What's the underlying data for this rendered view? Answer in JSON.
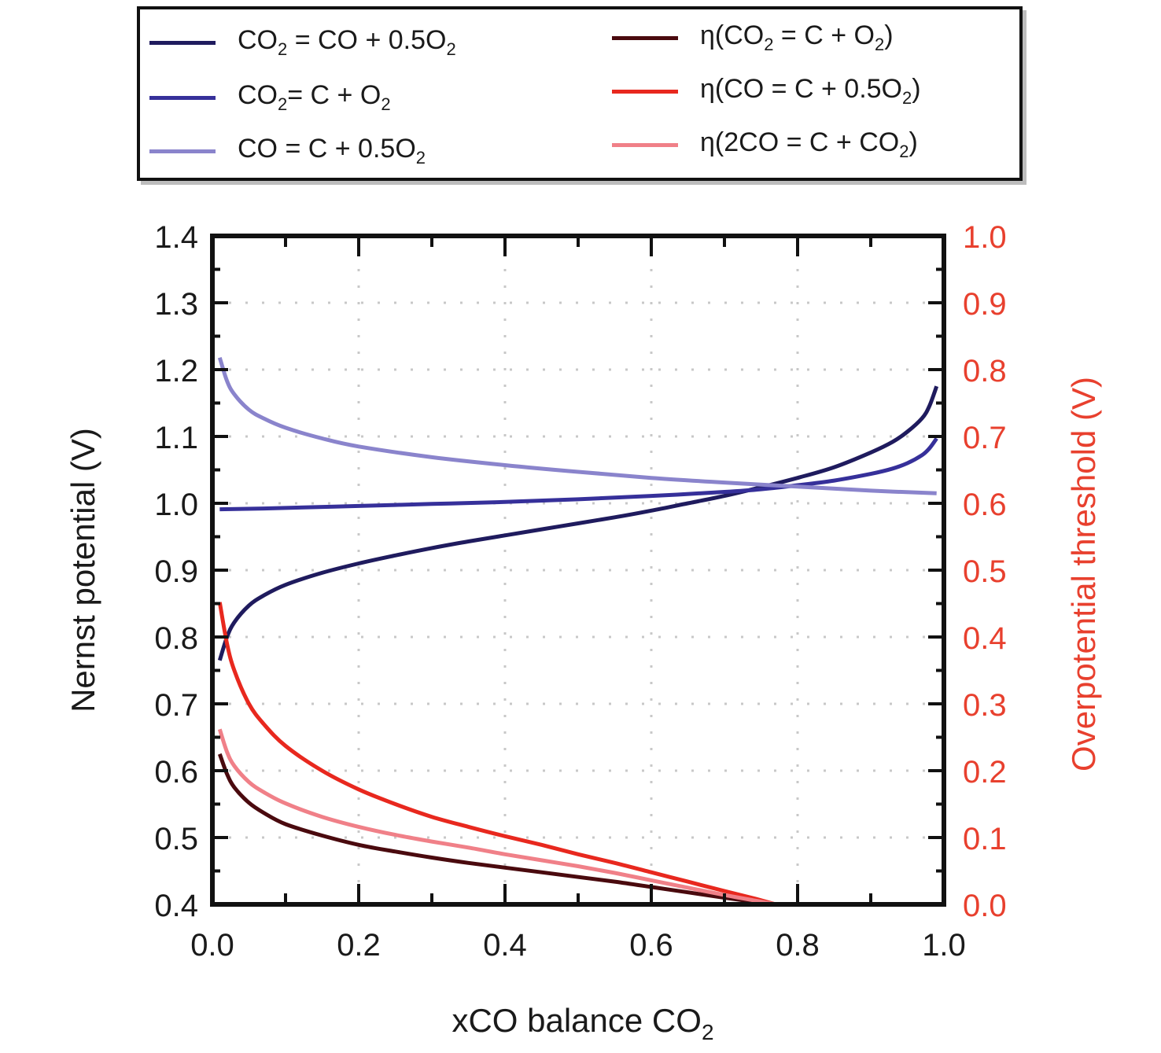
{
  "chart_data": {
    "type": "line",
    "title": "",
    "xlabel": "xCO balance CO",
    "xlabel_subscript": "2",
    "ylabel": "Nernst potential (V)",
    "ylabel_right": "Overpotential threshold (V)",
    "xlim": [
      0.0,
      1.0
    ],
    "ylim": [
      0.4,
      1.4
    ],
    "ylim_right": [
      0.0,
      1.0
    ],
    "grid": true,
    "legend_position": "top-outside",
    "x_ticks": [
      "0.0",
      "0.2",
      "0.4",
      "0.6",
      "0.8",
      "1.0"
    ],
    "y_ticks": [
      "0.4",
      "0.5",
      "0.6",
      "0.7",
      "0.8",
      "0.9",
      "1.0",
      "1.1",
      "1.2",
      "1.3",
      "1.4"
    ],
    "y_ticks_right": [
      "0.0",
      "0.1",
      "0.2",
      "0.3",
      "0.4",
      "0.5",
      "0.6",
      "0.7",
      "0.8",
      "0.9",
      "1.0"
    ],
    "colors": {
      "axis_right": "#e8402e",
      "grid": "#c8c8c8"
    },
    "series": [
      {
        "name": "CO2 = CO + 0.5O2",
        "legend": {
          "pre": "CO",
          "sub1": "2",
          "mid": " = CO + 0.5O",
          "sub2": "2",
          "post": ""
        },
        "axis": "left",
        "color": "#1f1b5e",
        "x": [
          0.01,
          0.02,
          0.03,
          0.05,
          0.07,
          0.1,
          0.15,
          0.2,
          0.25,
          0.3,
          0.35,
          0.4,
          0.45,
          0.5,
          0.55,
          0.6,
          0.65,
          0.7,
          0.75,
          0.8,
          0.85,
          0.9,
          0.93,
          0.95,
          0.97,
          0.98,
          0.99
        ],
        "y": [
          0.765,
          0.8,
          0.822,
          0.847,
          0.862,
          0.878,
          0.896,
          0.91,
          0.922,
          0.933,
          0.943,
          0.952,
          0.961,
          0.97,
          0.979,
          0.989,
          1.0,
          1.011,
          1.024,
          1.038,
          1.054,
          1.076,
          1.092,
          1.107,
          1.127,
          1.145,
          1.175
        ]
      },
      {
        "name": "CO2= C + O2",
        "legend": {
          "pre": "CO",
          "sub1": "2",
          "mid": "= C + O",
          "sub2": "2",
          "post": ""
        },
        "axis": "left",
        "color": "#36309a",
        "x": [
          0.01,
          0.1,
          0.2,
          0.3,
          0.4,
          0.5,
          0.6,
          0.7,
          0.75,
          0.8,
          0.85,
          0.9,
          0.93,
          0.95,
          0.97,
          0.98,
          0.99
        ],
        "y": [
          0.991,
          0.993,
          0.996,
          0.999,
          1.002,
          1.006,
          1.011,
          1.017,
          1.021,
          1.027,
          1.034,
          1.044,
          1.052,
          1.06,
          1.072,
          1.082,
          1.097
        ]
      },
      {
        "name": "CO = C + 0.5O2",
        "legend": {
          "pre": "CO = C + 0.5O",
          "sub1": "2",
          "mid": "",
          "sub2": "",
          "post": ""
        },
        "axis": "left",
        "color": "#8a84cc",
        "x": [
          0.01,
          0.02,
          0.03,
          0.05,
          0.07,
          0.1,
          0.15,
          0.2,
          0.3,
          0.4,
          0.5,
          0.6,
          0.7,
          0.8,
          0.9,
          0.99
        ],
        "y": [
          1.218,
          1.183,
          1.163,
          1.14,
          1.127,
          1.113,
          1.097,
          1.085,
          1.069,
          1.057,
          1.047,
          1.038,
          1.031,
          1.025,
          1.019,
          1.015
        ]
      },
      {
        "name": "η(CO2 = C + O2)",
        "legend": {
          "pre": "η(CO",
          "sub1": "2",
          "mid": " = C + O",
          "sub2": "2",
          "post": ")"
        },
        "axis": "right",
        "color": "#4a0a0e",
        "x": [
          0.01,
          0.02,
          0.03,
          0.05,
          0.07,
          0.1,
          0.15,
          0.2,
          0.25,
          0.3,
          0.35,
          0.4,
          0.45,
          0.5,
          0.55,
          0.6,
          0.65,
          0.7,
          0.74,
          0.77
        ],
        "y": [
          0.225,
          0.195,
          0.175,
          0.152,
          0.137,
          0.12,
          0.103,
          0.089,
          0.079,
          0.07,
          0.062,
          0.055,
          0.048,
          0.041,
          0.034,
          0.026,
          0.018,
          0.01,
          0.004,
          0.0
        ]
      },
      {
        "name": "η(CO = C + 0.5O2)",
        "legend": {
          "pre": "η(CO = C + 0.5O",
          "sub1": "2",
          "mid": "",
          "sub2": "",
          "post": ")"
        },
        "axis": "right",
        "color": "#e8281e",
        "x": [
          0.01,
          0.02,
          0.03,
          0.05,
          0.07,
          0.1,
          0.15,
          0.2,
          0.25,
          0.3,
          0.35,
          0.4,
          0.45,
          0.5,
          0.55,
          0.6,
          0.65,
          0.7,
          0.74,
          0.77
        ],
        "y": [
          0.452,
          0.39,
          0.35,
          0.3,
          0.27,
          0.237,
          0.2,
          0.172,
          0.15,
          0.131,
          0.116,
          0.102,
          0.089,
          0.075,
          0.062,
          0.048,
          0.034,
          0.02,
          0.009,
          0.0
        ]
      },
      {
        "name": "η(2CO = C + CO2)",
        "legend": {
          "pre": "η(2CO = C + CO",
          "sub1": "2",
          "mid": "",
          "sub2": "",
          "post": ")"
        },
        "axis": "right",
        "color": "#f08088",
        "x": [
          0.01,
          0.02,
          0.03,
          0.05,
          0.07,
          0.1,
          0.15,
          0.2,
          0.25,
          0.3,
          0.35,
          0.4,
          0.45,
          0.5,
          0.55,
          0.6,
          0.65,
          0.7,
          0.74,
          0.77
        ],
        "y": [
          0.262,
          0.228,
          0.207,
          0.183,
          0.168,
          0.151,
          0.131,
          0.116,
          0.104,
          0.094,
          0.085,
          0.075,
          0.066,
          0.057,
          0.047,
          0.036,
          0.025,
          0.014,
          0.006,
          0.0
        ]
      }
    ]
  }
}
